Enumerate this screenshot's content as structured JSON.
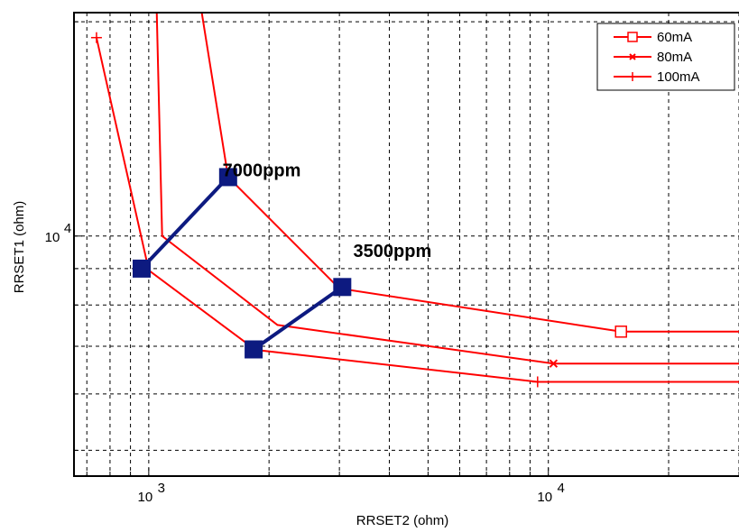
{
  "chart_data": {
    "type": "line",
    "xlabel": "RRSET2 (ohm)",
    "ylabel": "RRSET1 (ohm)",
    "xscale": "log",
    "yscale": "log",
    "xlim": [
      650,
      30000
    ],
    "ylim": [
      4600,
      20600
    ],
    "grid": true,
    "legend_position": "top-right",
    "x_ticks": [
      {
        "value": 1000,
        "base": "10",
        "exp": "3"
      },
      {
        "value": 10000,
        "base": "10",
        "exp": "4"
      }
    ],
    "y_ticks": [
      {
        "value": 10000,
        "base": "10",
        "exp": "4"
      }
    ],
    "series": [
      {
        "name": "60mA",
        "color": "#ff0000",
        "marker": "square",
        "x": [
          1000,
          1580,
          3000,
          15200,
          30000
        ],
        "y": [
          60000,
          12100,
          8440,
          7340,
          7340
        ],
        "marker_points": [
          [
            15200,
            7340
          ]
        ]
      },
      {
        "name": "80mA",
        "color": "#ff0000",
        "marker": "x",
        "x": [
          1000,
          1080,
          2100,
          10300,
          30000
        ],
        "y": [
          60000,
          10000,
          7500,
          6620,
          6620
        ],
        "marker_points": [
          [
            10300,
            6620
          ]
        ]
      },
      {
        "name": "100mA",
        "color": "#ff0000",
        "marker": "plus",
        "x": [
          740,
          1000,
          1850,
          9400,
          30000
        ],
        "y": [
          19000,
          8950,
          6920,
          6240,
          6240
        ],
        "marker_points": [
          [
            740,
            19000
          ],
          [
            9400,
            6240
          ]
        ]
      }
    ],
    "overlay_lines": [
      {
        "color": "#0d1a80",
        "x": [
          960,
          1580
        ],
        "y": [
          9000,
          12100
        ]
      },
      {
        "color": "#0d1a80",
        "x": [
          1830,
          3050
        ],
        "y": [
          6930,
          8480
        ]
      }
    ],
    "overlay_points": [
      [
        960,
        9000
      ],
      [
        1580,
        12100
      ],
      [
        1830,
        6930
      ],
      [
        3050,
        8480
      ]
    ],
    "annotations": [
      {
        "text": "7000ppm",
        "x": 1530,
        "y": 12130
      },
      {
        "text": "3500ppm",
        "x": 3250,
        "y": 9350
      }
    ]
  }
}
